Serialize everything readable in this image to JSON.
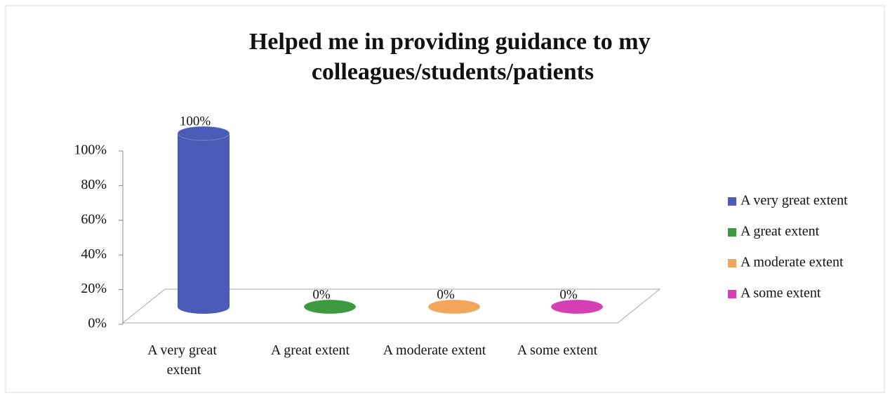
{
  "chart_data": {
    "type": "bar",
    "title": "Helped me in providing guidance to my colleagues/students/patients",
    "categories": [
      "A very great extent",
      "A great extent",
      "A moderate extent",
      "A some extent"
    ],
    "values": [
      100,
      0,
      0,
      0
    ],
    "value_labels": [
      "100%",
      "0%",
      "0%",
      "0%"
    ],
    "colors": [
      "#4a5cb8",
      "#3e9a40",
      "#f2a65c",
      "#d43fb4"
    ],
    "ylim": [
      0,
      100
    ],
    "yticks": [
      {
        "value": 0,
        "label": "0%"
      },
      {
        "value": 20,
        "label": "20%"
      },
      {
        "value": 40,
        "label": "40%"
      },
      {
        "value": 60,
        "label": "60%"
      },
      {
        "value": 80,
        "label": "80%"
      },
      {
        "value": 100,
        "label": "100%"
      }
    ],
    "legend": "right"
  }
}
